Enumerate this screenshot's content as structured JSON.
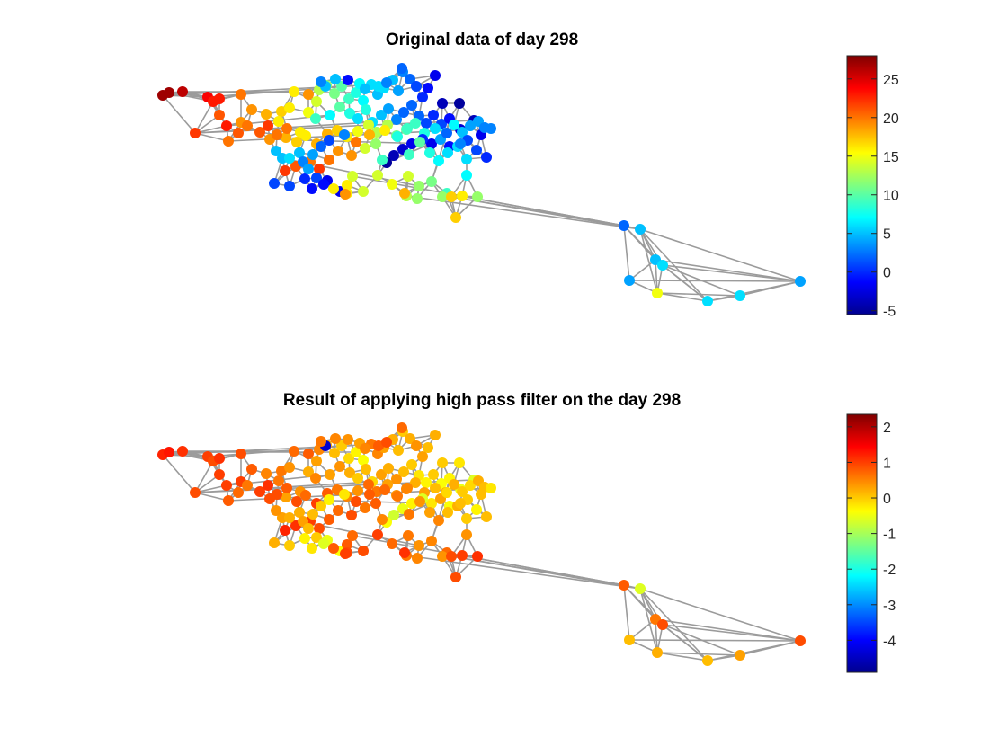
{
  "chart_data": [
    {
      "type": "scatter",
      "subtype": "graph-signal",
      "title": "Original data of day 298",
      "colormap": "jet",
      "clim": [
        -5.5,
        28
      ],
      "colorbar_ticks": [
        -5,
        0,
        5,
        10,
        15,
        20,
        25
      ],
      "colorbar_tick_labels": [
        "-5",
        "0",
        "5",
        "10",
        "15",
        "20",
        "25"
      ],
      "values": [
        27,
        27,
        26,
        24,
        23,
        21,
        23,
        20,
        19,
        23,
        22,
        20,
        21,
        20,
        19,
        18,
        17,
        16,
        16,
        16,
        18,
        16,
        15,
        14,
        13,
        12,
        11,
        10,
        9,
        8,
        7,
        6,
        5,
        6,
        5,
        4,
        3,
        2,
        1,
        0,
        -1,
        -2,
        -4,
        -5,
        9,
        7,
        10,
        8,
        6,
        8,
        6,
        5,
        4,
        3,
        2,
        2,
        2,
        1,
        0,
        1,
        -1,
        -3,
        -4,
        -2,
        19,
        21,
        22,
        20,
        20,
        17,
        16,
        18,
        18,
        17,
        16,
        15,
        14,
        13,
        13,
        11,
        10,
        9,
        8,
        6,
        8,
        7,
        5,
        4,
        4,
        3,
        3,
        1,
        1,
        0,
        -1,
        -2,
        0,
        -2,
        -3,
        -4,
        -5,
        22,
        21,
        20,
        22,
        20,
        19,
        19,
        14,
        12,
        9,
        9,
        10,
        8,
        7,
        6,
        6,
        6,
        4,
        3,
        2,
        1,
        1,
        0,
        -1,
        -2,
        -2,
        16,
        14,
        15,
        14,
        12,
        11,
        9,
        7,
        5,
        5,
        4,
        2,
        1,
        3,
        20,
        18,
        16,
        8,
        9,
        5,
        6,
        3,
        4,
        1,
        -1,
        16,
        16,
        14,
        14,
        13,
        12,
        12,
        17,
        16,
        12,
        19,
        18,
        17,
        19,
        5,
        5,
        3,
        -1,
        7,
        5,
        6,
        3,
        2,
        2,
        5,
        5,
        6,
        4,
        15,
        6,
        6,
        4,
        3,
        3,
        2,
        2,
        1,
        2,
        0,
        -4.5
      ]
    },
    {
      "type": "scatter",
      "subtype": "graph-signal",
      "title": "Result of applying high pass filter on the day 298",
      "colormap": "jet",
      "clim": [
        -4.9,
        2.35
      ],
      "colorbar_ticks": [
        -4,
        -3,
        -2,
        -1,
        0,
        1,
        2
      ],
      "colorbar_tick_labels": [
        "-4",
        "-3",
        "-2",
        "-1",
        "0",
        "1",
        "2"
      ],
      "values": [
        1.2,
        1.3,
        1.1,
        1.0,
        0.9,
        1.0,
        1.1,
        0.9,
        1.0,
        1.0,
        0.9,
        0.8,
        0.7,
        0.6,
        0.8,
        0.5,
        0.6,
        0.4,
        0.7,
        0.6,
        0.3,
        0.4,
        0.2,
        0.3,
        0.5,
        0.2,
        0.1,
        0.0,
        -0.1,
        -0.3,
        -0.4,
        0.6,
        0.5,
        0.3,
        0.2,
        0.1,
        0.0,
        0.2,
        0.4,
        0.3,
        0.1,
        0.2,
        0.0,
        -0.2,
        0.5,
        0.3,
        0.4,
        0.2,
        0.0,
        0.1,
        -0.1,
        0.3,
        0.2,
        0.4,
        0.1,
        0.0,
        -0.2,
        -0.3,
        0.0,
        -0.4,
        -0.3,
        -0.5,
        -0.6,
        0.1,
        0.9,
        1.0,
        1.1,
        0.9,
        0.8,
        0.9,
        0.7,
        1.0,
        0.8,
        0.6,
        0.5,
        0.4,
        0.7,
        0.6,
        0.3,
        0.4,
        0.5,
        0.2,
        0.3,
        0.1,
        0.4,
        0.2,
        0.0,
        -0.1,
        0.2,
        0.1,
        -0.2,
        0.0,
        -0.3,
        0.1,
        -0.4,
        -0.2,
        -0.6,
        -0.3,
        -0.5,
        -0.7,
        -0.4,
        1.2,
        1.1,
        1.0,
        0.9,
        0.8,
        0.7,
        0.9,
        0.6,
        0.8,
        0.5,
        0.6,
        0.4,
        0.3,
        0.5,
        0.1,
        0.2,
        0.0,
        0.3,
        0.1,
        -0.1,
        0.2,
        0.0,
        -0.3,
        -0.2,
        -0.5,
        -0.4,
        0.8,
        0.9,
        0.7,
        0.6,
        0.4,
        0.5,
        0.7,
        0.4,
        0.3,
        0.2,
        0.1,
        0.0,
        -0.3,
        -0.2,
        0.9,
        0.8,
        0.7,
        0.6,
        0.5,
        0.4,
        0.2,
        0.3,
        0.1,
        0.0,
        -0.6,
        0.8,
        0.9,
        0.7,
        1.0,
        0.6,
        0.5,
        0.4,
        0.9,
        1.0,
        1.1,
        1.0,
        1.1,
        0.9,
        0.8,
        -4.4,
        0.5,
        0.6,
        0.4,
        0.3,
        0.5,
        0.8,
        0.9,
        0.7,
        0.8,
        -0.6,
        0.6,
        0.9,
        0.1,
        0.2,
        0.1,
        0.3,
        0.9,
        0.3,
        0.4,
        0.3,
        -0.9
      ]
    }
  ]
}
